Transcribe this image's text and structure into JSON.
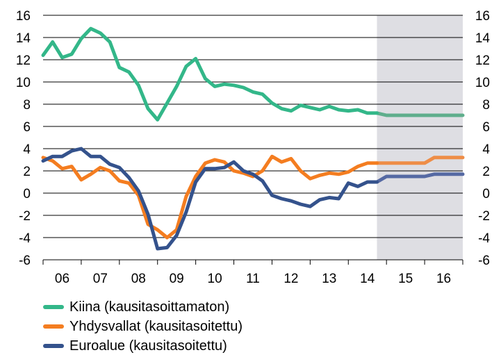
{
  "chart_data": {
    "type": "line",
    "title": "",
    "xlabel": "",
    "ylabel": "",
    "ylim": [
      -6,
      16
    ],
    "yticks": [
      -6,
      -4,
      -2,
      0,
      2,
      4,
      6,
      8,
      10,
      12,
      14,
      16
    ],
    "xlim": [
      2006,
      2017
    ],
    "xtick_labels": [
      "06",
      "07",
      "08",
      "09",
      "10",
      "11",
      "12",
      "13",
      "14",
      "15",
      "16"
    ],
    "forecast_shading": {
      "from": 2014.75,
      "to": 2017,
      "color": "#dedee3"
    },
    "grid": "horizontal",
    "legend_position": "bottom-left",
    "series": [
      {
        "name": "Kiina (kausitasoittamaton)",
        "color": "#33b789",
        "forecast_color": "#5fae8c",
        "x": [
          2006.0,
          2006.25,
          2006.5,
          2006.75,
          2007.0,
          2007.25,
          2007.5,
          2007.75,
          2008.0,
          2008.25,
          2008.5,
          2008.75,
          2009.0,
          2009.25,
          2009.5,
          2009.75,
          2010.0,
          2010.25,
          2010.5,
          2010.75,
          2011.0,
          2011.25,
          2011.5,
          2011.75,
          2012.0,
          2012.25,
          2012.5,
          2012.75,
          2013.0,
          2013.25,
          2013.5,
          2013.75,
          2014.0,
          2014.25,
          2014.5,
          2014.75,
          2015.0,
          2015.25,
          2015.5,
          2015.75,
          2016.0,
          2016.25,
          2016.5,
          2016.75,
          2017.0
        ],
        "values": [
          12.4,
          13.6,
          12.2,
          12.5,
          13.9,
          14.8,
          14.4,
          13.6,
          11.3,
          10.9,
          9.7,
          7.6,
          6.6,
          8.1,
          9.6,
          11.4,
          12.1,
          10.3,
          9.6,
          9.8,
          9.7,
          9.5,
          9.1,
          8.9,
          8.1,
          7.6,
          7.4,
          7.9,
          7.7,
          7.5,
          7.8,
          7.5,
          7.4,
          7.5,
          7.2,
          7.2,
          7.0,
          7.0,
          7.0,
          7.0,
          7.0,
          7.0,
          7.0,
          7.0,
          7.0
        ],
        "forecast_from": 2014.75
      },
      {
        "name": "Yhdysvallat (kausitasoitettu)",
        "color": "#f47d20",
        "forecast_color": "#ee8d47",
        "x": [
          2006.0,
          2006.25,
          2006.5,
          2006.75,
          2007.0,
          2007.25,
          2007.5,
          2007.75,
          2008.0,
          2008.25,
          2008.5,
          2008.75,
          2009.0,
          2009.25,
          2009.5,
          2009.75,
          2010.0,
          2010.25,
          2010.5,
          2010.75,
          2011.0,
          2011.25,
          2011.5,
          2011.75,
          2012.0,
          2012.25,
          2012.5,
          2012.75,
          2013.0,
          2013.25,
          2013.5,
          2013.75,
          2014.0,
          2014.25,
          2014.5,
          2014.75,
          2015.0,
          2015.25,
          2015.5,
          2015.75,
          2016.0,
          2016.25,
          2016.5,
          2016.75,
          2017.0
        ],
        "values": [
          3.2,
          2.9,
          2.2,
          2.4,
          1.2,
          1.7,
          2.3,
          2.0,
          1.1,
          0.9,
          -0.2,
          -2.8,
          -3.3,
          -4.0,
          -3.3,
          -0.3,
          1.5,
          2.7,
          3.0,
          2.8,
          2.0,
          1.8,
          1.5,
          2.0,
          3.3,
          2.8,
          3.1,
          2.0,
          1.3,
          1.6,
          1.8,
          1.7,
          1.9,
          2.4,
          2.7,
          2.7,
          2.7,
          2.7,
          2.7,
          2.7,
          2.7,
          3.2,
          3.2,
          3.2,
          3.2
        ],
        "forecast_from": 2014.75
      },
      {
        "name": "Euroalue (kausitasoitettu)",
        "color": "#34528c",
        "forecast_color": "#5569a3",
        "x": [
          2006.0,
          2006.25,
          2006.5,
          2006.75,
          2007.0,
          2007.25,
          2007.5,
          2007.75,
          2008.0,
          2008.25,
          2008.5,
          2008.75,
          2009.0,
          2009.25,
          2009.5,
          2009.75,
          2010.0,
          2010.25,
          2010.5,
          2010.75,
          2011.0,
          2011.25,
          2011.5,
          2011.75,
          2012.0,
          2012.25,
          2012.5,
          2012.75,
          2013.0,
          2013.25,
          2013.5,
          2013.75,
          2014.0,
          2014.25,
          2014.5,
          2014.75,
          2015.0,
          2015.25,
          2015.5,
          2015.75,
          2016.0,
          2016.25,
          2016.5,
          2016.75,
          2017.0
        ],
        "values": [
          2.9,
          3.3,
          3.3,
          3.8,
          4.0,
          3.3,
          3.3,
          2.6,
          2.3,
          1.4,
          0.2,
          -1.9,
          -5.0,
          -4.9,
          -3.8,
          -1.7,
          1.0,
          2.2,
          2.2,
          2.3,
          2.8,
          2.0,
          1.7,
          1.1,
          -0.2,
          -0.5,
          -0.7,
          -1.0,
          -1.2,
          -0.6,
          -0.4,
          -0.5,
          0.9,
          0.6,
          1.0,
          1.0,
          1.5,
          1.5,
          1.5,
          1.5,
          1.5,
          1.7,
          1.7,
          1.7,
          1.7
        ],
        "forecast_from": 2014.75
      }
    ]
  }
}
